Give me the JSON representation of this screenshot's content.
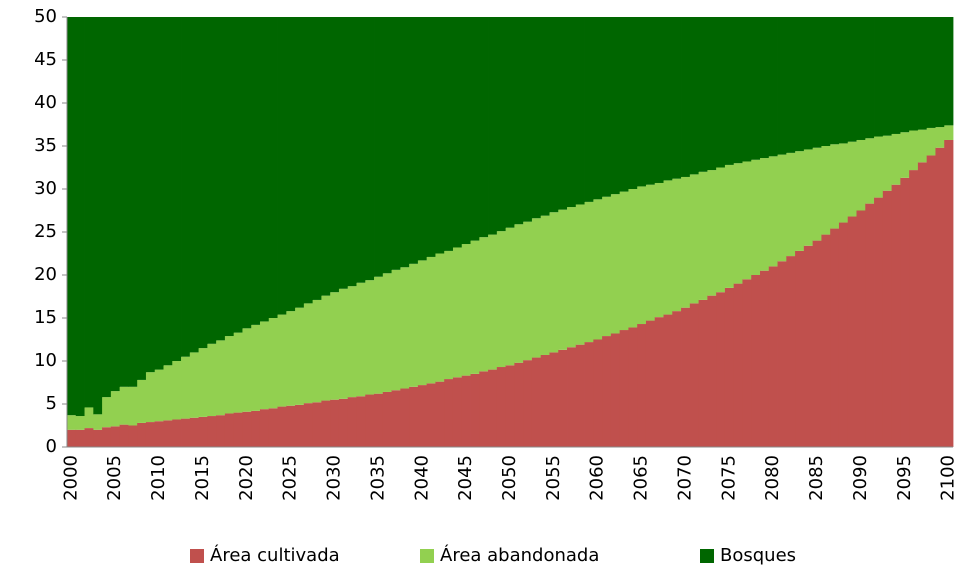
{
  "chart_data": {
    "type": "stacked_bar",
    "categories": [
      "2000",
      null,
      null,
      null,
      null,
      "2005",
      null,
      null,
      null,
      null,
      "2010",
      null,
      null,
      null,
      null,
      "2015",
      null,
      null,
      null,
      null,
      "2020",
      null,
      null,
      null,
      null,
      "2025",
      null,
      null,
      null,
      null,
      "2030",
      null,
      null,
      null,
      null,
      "2035",
      null,
      null,
      null,
      null,
      "2040",
      null,
      null,
      null,
      null,
      "2045",
      null,
      null,
      null,
      null,
      "2050",
      null,
      null,
      null,
      null,
      "2055",
      null,
      null,
      null,
      null,
      "2060",
      null,
      null,
      null,
      null,
      "2065",
      null,
      null,
      null,
      null,
      "2070",
      null,
      null,
      null,
      null,
      "2075",
      null,
      null,
      null,
      null,
      "2080",
      null,
      null,
      null,
      null,
      "2085",
      null,
      null,
      null,
      null,
      "2090",
      null,
      null,
      null,
      null,
      "2095",
      null,
      null,
      null,
      null,
      "2100"
    ],
    "series": [
      {
        "name": "Área cultivada",
        "color": "#c0504d",
        "values": [
          2.0,
          2.0,
          2.2,
          2.0,
          2.3,
          2.4,
          2.6,
          2.5,
          2.8,
          2.9,
          3.0,
          3.1,
          3.2,
          3.3,
          3.4,
          3.5,
          3.6,
          3.7,
          3.9,
          4.0,
          4.1,
          4.2,
          4.4,
          4.5,
          4.7,
          4.8,
          4.9,
          5.1,
          5.2,
          5.4,
          5.5,
          5.6,
          5.8,
          5.9,
          6.1,
          6.2,
          6.4,
          6.6,
          6.8,
          7.0,
          7.2,
          7.4,
          7.6,
          7.9,
          8.1,
          8.3,
          8.5,
          8.8,
          9.0,
          9.3,
          9.5,
          9.8,
          10.1,
          10.4,
          10.7,
          11.0,
          11.3,
          11.6,
          11.9,
          12.2,
          12.5,
          12.9,
          13.2,
          13.6,
          13.9,
          14.3,
          14.7,
          15.1,
          15.4,
          15.8,
          16.2,
          16.7,
          17.1,
          17.6,
          18.0,
          18.5,
          19.0,
          19.5,
          20.0,
          20.5,
          21.0,
          21.6,
          22.2,
          22.8,
          23.4,
          24.0,
          24.7,
          25.4,
          26.1,
          26.8,
          27.5,
          28.3,
          29.0,
          29.8,
          30.5,
          31.3,
          32.2,
          33.1,
          33.9,
          34.8,
          35.7
        ]
      },
      {
        "name": "Área abandonada",
        "color": "#92d050",
        "values": [
          1.7,
          1.6,
          2.4,
          1.8,
          3.5,
          4.1,
          4.4,
          4.5,
          5.0,
          5.8,
          6.0,
          6.4,
          6.8,
          7.2,
          7.6,
          8.0,
          8.4,
          8.7,
          9.0,
          9.3,
          9.7,
          10.0,
          10.2,
          10.5,
          10.7,
          11.0,
          11.3,
          11.6,
          11.9,
          12.2,
          12.5,
          12.8,
          12.9,
          13.2,
          13.3,
          13.6,
          13.8,
          14.0,
          14.1,
          14.3,
          14.5,
          14.7,
          14.9,
          14.9,
          15.1,
          15.3,
          15.5,
          15.6,
          15.7,
          15.8,
          16.0,
          16.1,
          16.1,
          16.2,
          16.2,
          16.3,
          16.3,
          16.3,
          16.3,
          16.3,
          16.3,
          16.2,
          16.2,
          16.1,
          16.1,
          16.0,
          15.8,
          15.6,
          15.6,
          15.4,
          15.2,
          15.0,
          14.9,
          14.6,
          14.5,
          14.3,
          14.0,
          13.7,
          13.4,
          13.1,
          12.8,
          12.4,
          12.0,
          11.6,
          11.2,
          10.8,
          10.3,
          9.8,
          9.2,
          8.7,
          8.2,
          7.6,
          7.1,
          6.4,
          5.9,
          5.3,
          4.6,
          3.8,
          3.2,
          2.4,
          1.7
        ]
      },
      {
        "name": "Bosques",
        "color": "#006600",
        "values": [
          46.3,
          46.4,
          45.4,
          46.2,
          44.2,
          43.5,
          43.0,
          43.0,
          42.2,
          41.3,
          41.0,
          40.5,
          40.0,
          39.5,
          39.0,
          38.5,
          38.0,
          37.6,
          37.1,
          36.7,
          36.2,
          35.8,
          35.4,
          35.0,
          34.6,
          34.2,
          33.8,
          33.3,
          32.9,
          32.4,
          32.0,
          31.6,
          31.3,
          30.9,
          30.6,
          30.2,
          29.8,
          29.4,
          29.1,
          28.7,
          28.3,
          27.9,
          27.5,
          27.2,
          26.8,
          26.4,
          26.0,
          25.6,
          25.3,
          24.9,
          24.5,
          24.1,
          23.8,
          23.4,
          23.1,
          22.7,
          22.4,
          22.1,
          21.8,
          21.5,
          21.2,
          20.9,
          20.6,
          20.3,
          20.0,
          19.7,
          19.5,
          19.3,
          19.0,
          18.8,
          18.6,
          18.3,
          18.0,
          17.8,
          17.5,
          17.2,
          17.0,
          16.8,
          16.6,
          16.4,
          16.2,
          16.0,
          15.8,
          15.6,
          15.4,
          15.2,
          15.0,
          14.8,
          14.7,
          14.5,
          14.3,
          14.1,
          13.9,
          13.8,
          13.6,
          13.4,
          13.2,
          13.1,
          12.9,
          12.8,
          12.6
        ]
      }
    ],
    "ylim": [
      0,
      50
    ],
    "yticks": [
      0,
      5,
      10,
      15,
      20,
      25,
      30,
      35,
      40,
      45,
      50
    ],
    "grid": false,
    "legend": "bottom"
  }
}
